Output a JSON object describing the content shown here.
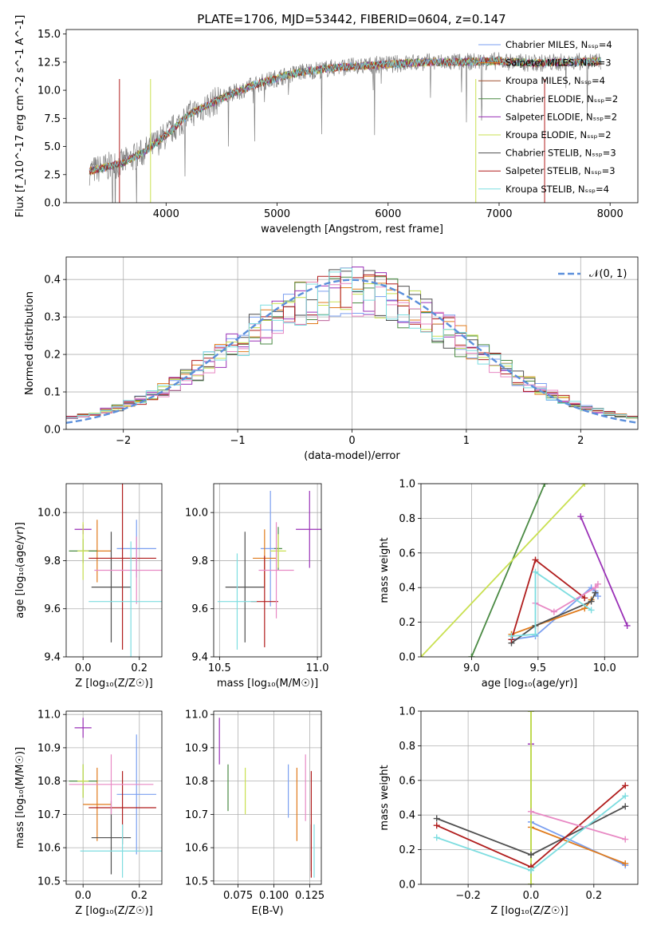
{
  "figure": {
    "title": "PLATE=1706, MJD=53442, FIBERID=0604, z=0.147"
  },
  "colors": [
    "#7b9ff0",
    "#e07b1c",
    "#4a8a43",
    "#9a30b7",
    "#c9e050",
    "#4f4f4f",
    "#b01c1c",
    "#e889c4",
    "#7ddde0",
    "#a05030"
  ],
  "chart_data": [
    {
      "id": "spectrum",
      "type": "line",
      "xlabel": "wavelength [Angstrom, rest frame]",
      "ylabel": "Flux [f_λ10^-17 erg cm^-2 s^-1 A^-1]",
      "xlim": [
        3100,
        8250
      ],
      "ylim": [
        0,
        15.4
      ],
      "xticks": [
        4000,
        5000,
        6000,
        7000,
        8000
      ],
      "yticks": [
        0.0,
        2.5,
        5.0,
        7.5,
        10.0,
        12.5,
        15.0
      ],
      "xtick_labels": [
        "4000",
        "5000",
        "6000",
        "7000",
        "8000"
      ],
      "ytick_labels": [
        "0.0",
        "2.5",
        "5.0",
        "7.5",
        "10.0",
        "12.5",
        "15.0"
      ],
      "legend_loc": "right",
      "series": [
        {
          "name": "Chabrier MILES, N_SSP=4",
          "color": "#7b9ff0"
        },
        {
          "name": "Salpeter MILES, N_SSP=3",
          "color": "#e07b1c"
        },
        {
          "name": "Kroupa MILES, N_SSP=4",
          "color": "#a05030"
        },
        {
          "name": "Chabrier ELODIE, N_SSP=2",
          "color": "#4a8a43"
        },
        {
          "name": "Salpeter ELODIE, N_SSP=2",
          "color": "#9a30b7"
        },
        {
          "name": "Kroupa ELODIE, N_SSP=2",
          "color": "#c9e050"
        },
        {
          "name": "Chabrier STELIB, N_SSP=3",
          "color": "#4f4f4f"
        },
        {
          "name": "Salpeter STELIB, N_SSP=3",
          "color": "#b01c1c"
        },
        {
          "name": "Kroupa STELIB, N_SSP=4",
          "color": "#7ddde0"
        }
      ],
      "model_continuum": {
        "x": [
          3300,
          3600,
          3800,
          4000,
          4200,
          4500,
          4800,
          5000,
          5200,
          5500,
          5800,
          6000,
          6300,
          6600,
          7000,
          7300,
          7600,
          8000
        ],
        "y": [
          2.8,
          3.5,
          4.5,
          6.0,
          7.8,
          9.3,
          10.5,
          11.1,
          11.6,
          12.0,
          12.2,
          12.3,
          12.5,
          12.5,
          12.6,
          12.4,
          12.5,
          12.6
        ]
      }
    },
    {
      "id": "residuals",
      "type": "step",
      "xlabel": "(data-model)/error",
      "ylabel": "Normed distribution",
      "xlim": [
        -2.5,
        2.5
      ],
      "ylim": [
        0,
        0.46
      ],
      "xticks": [
        -2,
        -1,
        0,
        1,
        2
      ],
      "xtick_labels": [
        "−2",
        "−1",
        "0",
        "1",
        "2"
      ],
      "yticks": [
        0.0,
        0.1,
        0.2,
        0.3,
        0.4
      ],
      "ytick_labels": [
        "0.0",
        "0.1",
        "0.2",
        "0.3",
        "0.4"
      ],
      "legend": [
        "𝒩(0, 1)"
      ],
      "legend_loc": "upper right",
      "grid": true
    },
    {
      "id": "age_Z",
      "type": "errorbar",
      "xlabel": "Z [log₁₀(Z/Z☉)]",
      "ylabel": "age  [log₁₀(age/yr)]",
      "xlim": [
        -0.06,
        0.28
      ],
      "ylim": [
        9.4,
        10.12
      ],
      "xticks": [
        0.0,
        0.2
      ],
      "xtick_labels": [
        "0.0",
        "0.2"
      ],
      "yticks": [
        9.4,
        9.6,
        9.8,
        10.0
      ],
      "ytick_labels": [
        "9.4",
        "9.6",
        "9.8",
        "10.0"
      ],
      "points": [
        {
          "x": 0.19,
          "y": 9.85,
          "xe": 0.07,
          "ye": 0.12,
          "c": 0
        },
        {
          "x": 0.05,
          "y": 9.84,
          "xe": 0.05,
          "ye": 0.13,
          "c": 1
        },
        {
          "x": 0.0,
          "y": 9.84,
          "xe": 0.05,
          "ye": 0.05,
          "c": 2
        },
        {
          "x": 0.0,
          "y": 9.93,
          "xe": 0.03,
          "ye": 0.02,
          "c": 3
        },
        {
          "x": 0.0,
          "y": 9.84,
          "xe": 0.02,
          "ye": 0.12,
          "c": 4
        },
        {
          "x": 0.1,
          "y": 9.69,
          "xe": 0.07,
          "ye": 0.23,
          "c": 5
        },
        {
          "x": 0.14,
          "y": 9.81,
          "xe": 0.12,
          "ye": 0.38,
          "c": 6
        },
        {
          "x": 0.19,
          "y": 9.76,
          "xe": 0.15,
          "ye": 0.14,
          "c": 7
        },
        {
          "x": 0.17,
          "y": 9.63,
          "xe": 0.15,
          "ye": 0.25,
          "c": 8
        }
      ]
    },
    {
      "id": "age_mass",
      "type": "errorbar",
      "xlabel": "mass [log₁₀(M/M☉)]",
      "xlim": [
        10.47,
        11.02
      ],
      "ylim": [
        9.4,
        10.12
      ],
      "xticks": [
        10.5,
        11.0
      ],
      "xtick_labels": [
        "10.5",
        "11.0"
      ],
      "yticks": [
        9.4,
        9.6,
        9.8,
        10.0
      ],
      "ytick_labels": [
        "9.4",
        "9.6",
        "9.8",
        "10.0"
      ],
      "points": [
        {
          "x": 10.76,
          "y": 9.85,
          "xe": 0.05,
          "ye": 0.24,
          "c": 0
        },
        {
          "x": 10.73,
          "y": 9.81,
          "xe": 0.06,
          "ye": 0.12,
          "c": 1
        },
        {
          "x": 10.8,
          "y": 9.85,
          "xe": 0.02,
          "ye": 0.09,
          "c": 2
        },
        {
          "x": 10.96,
          "y": 9.93,
          "xe": 0.07,
          "ye": 0.16,
          "c": 3
        },
        {
          "x": 10.8,
          "y": 9.84,
          "xe": 0.04,
          "ye": 0.07,
          "c": 4
        },
        {
          "x": 10.63,
          "y": 9.69,
          "xe": 0.1,
          "ye": 0.23,
          "c": 5
        },
        {
          "x": 10.73,
          "y": 9.63,
          "xe": 0.07,
          "ye": 0.19,
          "c": 6
        },
        {
          "x": 10.79,
          "y": 9.76,
          "xe": 0.09,
          "ye": 0.2,
          "c": 7
        },
        {
          "x": 10.59,
          "y": 9.63,
          "xe": 0.1,
          "ye": 0.2,
          "c": 8
        }
      ]
    },
    {
      "id": "massweight_age",
      "type": "line",
      "xlabel": "age  [log₁₀(age/yr)]",
      "ylabel": "mass weight",
      "xlim": [
        8.62,
        10.25
      ],
      "ylim": [
        0,
        1.0
      ],
      "xticks": [
        9.0,
        9.5,
        10.0
      ],
      "xtick_labels": [
        "9.0",
        "9.5",
        "10.0"
      ],
      "yticks": [
        0.0,
        0.2,
        0.4,
        0.6,
        0.8,
        1.0
      ],
      "ytick_labels": [
        "0.0",
        "0.2",
        "0.4",
        "0.6",
        "0.8",
        "1.0"
      ],
      "series": [
        {
          "c": 0,
          "x": [
            9.3,
            9.48,
            9.9,
            9.93,
            9.95
          ],
          "y": [
            0.1,
            0.12,
            0.4,
            0.38,
            0.35
          ]
        },
        {
          "c": 1,
          "x": [
            9.3,
            9.48,
            9.85,
            9.9
          ],
          "y": [
            0.13,
            0.18,
            0.28,
            0.33
          ]
        },
        {
          "c": 2,
          "x": [
            9.0,
            9.55
          ],
          "y": [
            0.0,
            1.0
          ]
        },
        {
          "c": 3,
          "x": [
            9.82,
            10.17
          ],
          "y": [
            0.81,
            0.18
          ]
        },
        {
          "c": 4,
          "x": [
            8.62,
            9.85
          ],
          "y": [
            0.0,
            1.0
          ]
        },
        {
          "c": 5,
          "x": [
            9.3,
            9.48,
            9.9,
            9.93
          ],
          "y": [
            0.08,
            0.18,
            0.32,
            0.37
          ]
        },
        {
          "c": 6,
          "x": [
            9.3,
            9.48,
            9.85
          ],
          "y": [
            0.1,
            0.56,
            0.34
          ]
        },
        {
          "c": 7,
          "x": [
            9.48,
            9.62,
            9.93,
            9.95
          ],
          "y": [
            0.31,
            0.26,
            0.4,
            0.42
          ]
        },
        {
          "c": 8,
          "x": [
            9.3,
            9.48,
            9.48,
            9.9
          ],
          "y": [
            0.12,
            0.13,
            0.49,
            0.27
          ]
        }
      ]
    },
    {
      "id": "mass_Z",
      "type": "errorbar",
      "xlabel": "Z [log₁₀(Z/Z☉)]",
      "ylabel": "mass [log₁₀(M/M☉)]",
      "xlim": [
        -0.06,
        0.28
      ],
      "ylim": [
        10.49,
        11.01
      ],
      "xticks": [
        0.0,
        0.2
      ],
      "xtick_labels": [
        "0.0",
        "0.2"
      ],
      "yticks": [
        10.5,
        10.6,
        10.7,
        10.8,
        10.9,
        11.0
      ],
      "ytick_labels": [
        "10.5",
        "10.6",
        "10.7",
        "10.8",
        "10.9",
        "11.0"
      ],
      "points": [
        {
          "x": 0.19,
          "y": 10.76,
          "xe": 0.07,
          "ye": 0.18,
          "c": 0
        },
        {
          "x": 0.05,
          "y": 10.73,
          "xe": 0.05,
          "ye": 0.11,
          "c": 1
        },
        {
          "x": 0.0,
          "y": 10.8,
          "xe": 0.05,
          "ye": 0.05,
          "c": 2
        },
        {
          "x": 0.0,
          "y": 10.96,
          "xe": 0.03,
          "ye": 0.03,
          "c": 3
        },
        {
          "x": 0.0,
          "y": 10.8,
          "xe": 0.02,
          "ye": 0.05,
          "c": 4
        },
        {
          "x": 0.1,
          "y": 10.63,
          "xe": 0.07,
          "ye": 0.11,
          "c": 5
        },
        {
          "x": 0.14,
          "y": 10.72,
          "xe": 0.12,
          "ye": 0.11,
          "c": 6
        },
        {
          "x": 0.1,
          "y": 10.79,
          "xe": 0.15,
          "ye": 0.09,
          "c": 7
        },
        {
          "x": 0.14,
          "y": 10.59,
          "xe": 0.15,
          "ye": 0.08,
          "c": 8
        }
      ]
    },
    {
      "id": "mass_ebv",
      "type": "errorbar",
      "xlabel": "E(B-V)",
      "xlim": [
        0.058,
        0.133
      ],
      "ylim": [
        10.49,
        11.01
      ],
      "xticks": [
        0.075,
        0.1,
        0.125
      ],
      "xtick_labels": [
        "0.075",
        "0.100",
        "0.125"
      ],
      "yticks": [
        10.5,
        10.6,
        10.7,
        10.8,
        10.9,
        11.0
      ],
      "ytick_labels": [
        "10.5",
        "10.6",
        "10.7",
        "10.8",
        "10.9",
        "11.0"
      ],
      "points": [
        {
          "x": 0.11,
          "y": 10.77,
          "ye": 0.08,
          "c": 0
        },
        {
          "x": 0.116,
          "y": 10.73,
          "ye": 0.11,
          "c": 1
        },
        {
          "x": 0.068,
          "y": 10.78,
          "ye": 0.07,
          "c": 2
        },
        {
          "x": 0.062,
          "y": 10.92,
          "ye": 0.07,
          "c": 3
        },
        {
          "x": 0.08,
          "y": 10.77,
          "ye": 0.07,
          "c": 4
        },
        {
          "x": 0.126,
          "y": 10.6,
          "ye": 0.07,
          "c": 5
        },
        {
          "x": 0.126,
          "y": 10.67,
          "ye": 0.16,
          "c": 6
        },
        {
          "x": 0.122,
          "y": 10.78,
          "ye": 0.1,
          "c": 7
        },
        {
          "x": 0.128,
          "y": 10.59,
          "ye": 0.08,
          "c": 8
        }
      ]
    },
    {
      "id": "massweight_Z",
      "type": "line",
      "xlabel": "Z [log₁₀(Z/Z☉)]",
      "ylabel": "mass weight",
      "xlim": [
        -0.35,
        0.34
      ],
      "ylim": [
        0,
        1.0
      ],
      "xticks": [
        -0.2,
        0.0,
        0.2
      ],
      "xtick_labels": [
        "−0.2",
        "0.0",
        "0.2"
      ],
      "yticks": [
        0.0,
        0.2,
        0.4,
        0.6,
        0.8,
        1.0
      ],
      "ytick_labels": [
        "0.0",
        "0.2",
        "0.4",
        "0.6",
        "0.8",
        "1.0"
      ],
      "series": [
        {
          "c": 0,
          "x": [
            0.0,
            0.3
          ],
          "y": [
            0.36,
            0.11
          ]
        },
        {
          "c": 1,
          "x": [
            0.0,
            0.3
          ],
          "y": [
            0.33,
            0.12
          ]
        },
        {
          "c": 2,
          "x": [
            0.0,
            0.0
          ],
          "y": [
            0.0,
            1.0
          ]
        },
        {
          "c": 3,
          "x": [
            0.0,
            0.0
          ],
          "y": [
            0.81,
            0.81
          ]
        },
        {
          "c": 4,
          "x": [
            0.0,
            0.0
          ],
          "y": [
            0.0,
            1.0
          ]
        },
        {
          "c": 5,
          "x": [
            -0.3,
            0.0,
            0.3
          ],
          "y": [
            0.38,
            0.17,
            0.45
          ]
        },
        {
          "c": 6,
          "x": [
            -0.3,
            0.0,
            0.3
          ],
          "y": [
            0.34,
            0.1,
            0.57
          ]
        },
        {
          "c": 7,
          "x": [
            0.0,
            0.3
          ],
          "y": [
            0.42,
            0.26
          ]
        },
        {
          "c": 8,
          "x": [
            -0.3,
            0.0,
            0.3
          ],
          "y": [
            0.27,
            0.08,
            0.51
          ]
        }
      ]
    }
  ]
}
